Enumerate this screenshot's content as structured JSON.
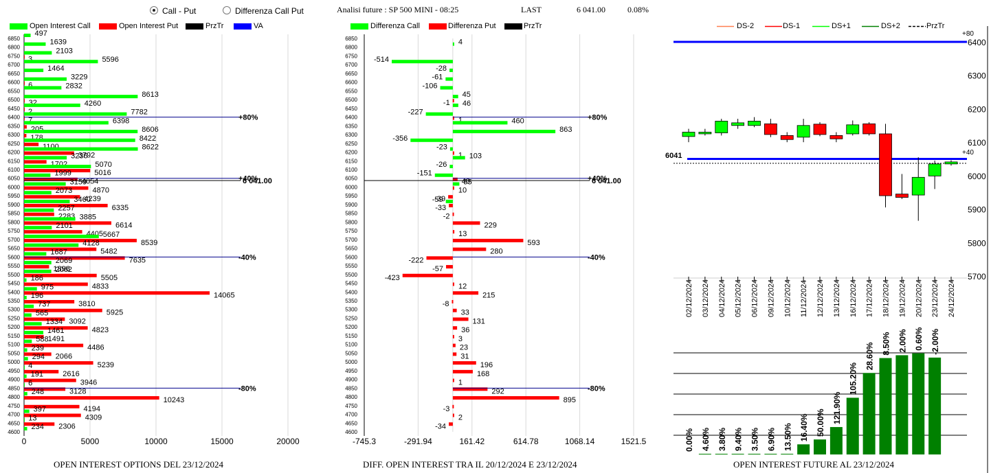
{
  "header": {
    "radio_call_put": "Call - Put",
    "radio_diff": "Differenza Call Put",
    "title": "Analisi future : SP 500 MINI - 08:25",
    "last_label": "LAST",
    "last_value": "6 041.00",
    "last_change": "0.08%",
    "selected": "call_put"
  },
  "colors": {
    "green": "#00ff00",
    "red": "#ff0000",
    "black": "#000000",
    "blue": "#0000ff",
    "dark_green": "#008000"
  },
  "panel1": {
    "legend": [
      "Open Interest Call",
      "Open Interest Put",
      "PrzTr",
      "VA"
    ],
    "footer": "OPEN INTEREST OPTIONS DEL 23/12/2024",
    "x_ticks": [
      "0",
      "5000",
      "10000",
      "15000",
      "20000"
    ],
    "line_labels": {
      "p80": "+80%",
      "p40": "+40%",
      "price": "6 041.00",
      "m40": "-40%",
      "m80": "-80%"
    },
    "chart_data": {
      "type": "bar",
      "orientation": "horizontal",
      "xlim": [
        0,
        20000
      ],
      "strikes": [
        6850,
        6800,
        6750,
        6700,
        6650,
        6600,
        6550,
        6500,
        6450,
        6400,
        6350,
        6300,
        6250,
        6200,
        6150,
        6100,
        6050,
        6000,
        5950,
        5900,
        5850,
        5800,
        5750,
        5700,
        5650,
        5600,
        5550,
        5500,
        5450,
        5400,
        5350,
        5300,
        5250,
        5200,
        5150,
        5100,
        5050,
        5000,
        4950,
        4900,
        4850,
        4800,
        4750,
        4700,
        4650,
        4600
      ],
      "series": [
        {
          "name": "Open Interest Call",
          "values": [
            497,
            1639,
            2103,
            5596,
            1464,
            3229,
            2832,
            8613,
            4260,
            7782,
            6398,
            8606,
            8422,
            8622,
            3236,
            5070,
            1999,
            3159,
            2073,
            3460,
            2257,
            3885,
            2101,
            5667,
            4128,
            1687,
            2069,
            2062,
            186,
            975,
            196,
            737,
            565,
            1334,
            1461,
            588,
            239,
            294,
            4,
            191,
            6,
            248,
            null,
            397,
            13,
            234
          ]
        },
        {
          "name": "Open Interest Put",
          "values": [
            null,
            null,
            3,
            null,
            null,
            6,
            null,
            32,
            2,
            7,
            205,
            178,
            1100,
            3792,
            1702,
            5016,
            4054,
            4870,
            4239,
            6335,
            2283,
            6614,
            4405,
            8539,
            5482,
            7635,
            1896,
            5505,
            4833,
            14065,
            3810,
            5925,
            3092,
            4823,
            1491,
            4486,
            2066,
            5239,
            2616,
            3946,
            3128,
            10243,
            4194,
            4309,
            2306,
            null
          ]
        }
      ],
      "reference_lines": {
        "+80%": 6400,
        "+40%": 6050,
        "price": 6041.0,
        "-40%": 5600,
        "-80%": 4850
      }
    }
  },
  "panel2": {
    "legend": [
      "Differenza Call",
      "Differenza Put",
      "PrzTr"
    ],
    "footer": "DIFF. OPEN INTEREST TRA IL 20/12/2024 E 23/12/2024",
    "x_ticks": [
      "-745.3",
      "-291.94",
      "161.42",
      "614.78",
      "1068.14",
      "1521.5"
    ],
    "line_labels": {
      "p80": "+80%",
      "p40": "+40%",
      "price": "6 041.00",
      "m40": "-40%",
      "m80": "-80%"
    },
    "chart_data": {
      "type": "bar",
      "orientation": "horizontal",
      "xlim": [
        -745.3,
        1521.5
      ],
      "strikes": [
        6850,
        6800,
        6750,
        6700,
        6650,
        6600,
        6550,
        6500,
        6450,
        6400,
        6350,
        6300,
        6250,
        6200,
        6150,
        6100,
        6050,
        6000,
        5950,
        5900,
        5850,
        5800,
        5750,
        5700,
        5650,
        5600,
        5550,
        5500,
        5450,
        5400,
        5350,
        5300,
        5250,
        5200,
        5150,
        5100,
        5050,
        5000,
        4950,
        4900,
        4850,
        4800,
        4750,
        4700,
        4650,
        4600
      ],
      "series": [
        {
          "name": "Differenza Call",
          "values": [
            null,
            4,
            null,
            -514,
            -28,
            -61,
            -106,
            45,
            46,
            -227,
            460,
            863,
            -356,
            -23,
            103,
            -26,
            -151,
            55,
            null,
            -59,
            null,
            null,
            null,
            null,
            null,
            null,
            null,
            null,
            null,
            null,
            null,
            null,
            null,
            null,
            null,
            null,
            null,
            null,
            null,
            null,
            null,
            null,
            null,
            null,
            null,
            null
          ]
        },
        {
          "name": "Differenza Put",
          "values": [
            null,
            null,
            null,
            null,
            null,
            null,
            null,
            -1,
            null,
            1,
            null,
            null,
            null,
            1,
            null,
            null,
            40,
            10,
            -39,
            -33,
            -2,
            229,
            13,
            593,
            280,
            -222,
            -57,
            -423,
            12,
            215,
            -8,
            33,
            131,
            36,
            3,
            23,
            31,
            196,
            168,
            1,
            292,
            895,
            -3,
            2,
            -34,
            null
          ]
        }
      ],
      "reference_lines": {
        "+80%": 6400,
        "+40%": 6050,
        "price": 6041.0,
        "-40%": 5600,
        "-80%": 4850
      }
    }
  },
  "panel3": {
    "legend": [
      "DS-2",
      "DS-1",
      "DS+1",
      "DS+2",
      "PrzTr"
    ],
    "footer": "OPEN INTEREST FUTURE AL 23/12/2024",
    "y_ticks": [
      "6400",
      "6300",
      "6200",
      "6100",
      "6000",
      "5900",
      "5800",
      "5700"
    ],
    "labels": {
      "p80": "+80",
      "p40": "+40",
      "price": "6041"
    },
    "chart_data": [
      {
        "type": "candlestick",
        "ylim": [
          5700,
          6400
        ],
        "x": [
          "02/12/2024",
          "03/12/2024",
          "04/12/2024",
          "05/12/2024",
          "06/12/2024",
          "09/12/2024",
          "10/12/2024",
          "11/12/2024",
          "12/12/2024",
          "13/12/2024",
          "16/12/2024",
          "17/12/2024",
          "18/12/2024",
          "19/12/2024",
          "20/12/2024",
          "23/12/2024",
          "24/12/2024"
        ],
        "open": [
          6117,
          6125,
          6128,
          6150,
          6150,
          6155,
          6120,
          6115,
          6154,
          6120,
          6125,
          6155,
          6125,
          5945,
          5942,
          5999,
          6035
        ],
        "close": [
          6130,
          6130,
          6163,
          6158,
          6163,
          6123,
          6108,
          6150,
          6123,
          6110,
          6152,
          6125,
          5940,
          5935,
          5995,
          6035,
          6041
        ],
        "high": [
          6140,
          6140,
          6170,
          6170,
          6175,
          6170,
          6130,
          6170,
          6160,
          6130,
          6165,
          6160,
          6155,
          6005,
          6055,
          6045,
          6046
        ],
        "low": [
          6100,
          6120,
          6120,
          6140,
          6145,
          6115,
          6100,
          6100,
          6118,
          6100,
          6120,
          6120,
          5905,
          5930,
          5865,
          5960,
          6030
        ],
        "reference_lines": {
          "+80": 6400,
          "+40": 6050,
          "price": 6041
        }
      },
      {
        "type": "bar",
        "categories": [
          "02/12/2024",
          "03/12/2024",
          "04/12/2024",
          "05/12/2024",
          "06/12/2024",
          "09/12/2024",
          "10/12/2024",
          "11/12/2024",
          "12/12/2024",
          "13/12/2024",
          "16/12/2024",
          "17/12/2024",
          "18/12/2024",
          "19/12/2024",
          "20/12/2024",
          "23/12/2024"
        ],
        "values": [
          0,
          5,
          4,
          9,
          4,
          7,
          270,
          4280,
          6350,
          11600,
          24000,
          34500,
          40800,
          42000,
          42800,
          41000
        ],
        "labels": [
          "0.00%",
          "4.60%",
          "3.80%",
          "9.40%",
          "3.50%",
          "6.90%",
          "13.50%",
          "16.40%",
          "50.00%",
          "121.90%",
          "105.20%",
          "28.60%",
          "8.50%",
          "2.00%",
          "0.60%",
          "-2.00%"
        ]
      }
    ]
  }
}
